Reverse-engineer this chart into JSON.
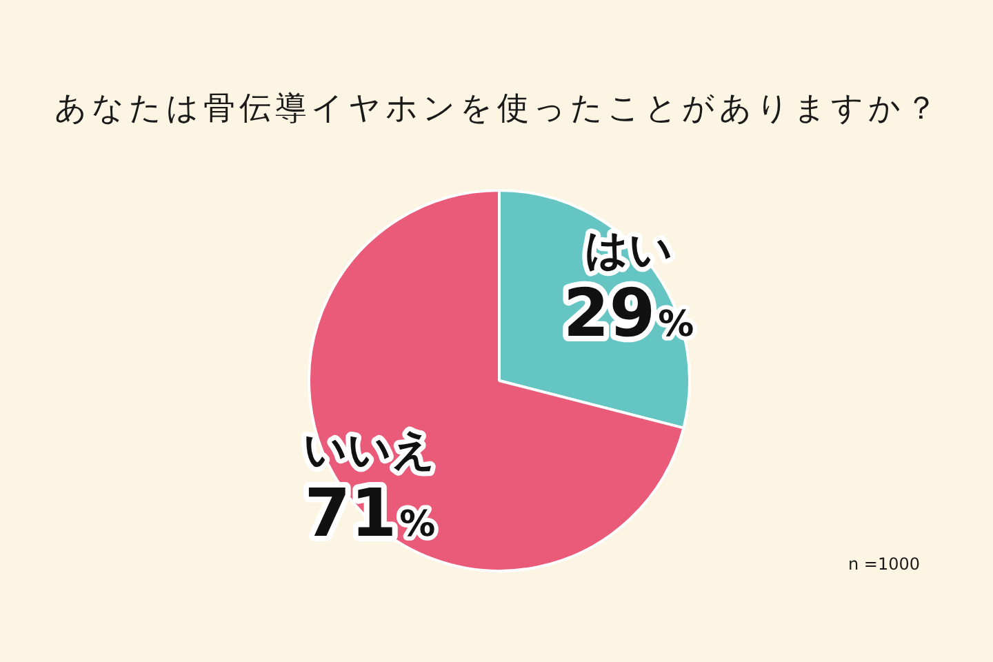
{
  "chart_data": {
    "type": "pie",
    "title": "あなたは骨伝導イヤホンを使ったことがありますか？",
    "categories": [
      "はい",
      "いいえ"
    ],
    "values": [
      29,
      71
    ],
    "colors": [
      "#65c5c3",
      "#ea5b79"
    ],
    "value_labels": [
      "29%",
      "71%"
    ],
    "annotations": [
      "n =1000"
    ]
  }
}
